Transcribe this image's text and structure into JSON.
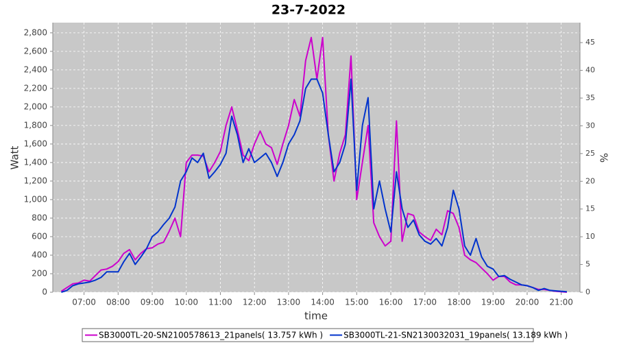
{
  "chart_data": {
    "type": "line",
    "title": "23-7-2022",
    "x_label": "time",
    "y_label": "Watt",
    "y2_label": "%",
    "x": [
      "06:20",
      "06:30",
      "06:40",
      "06:50",
      "07:00",
      "07:10",
      "07:20",
      "07:30",
      "07:40",
      "07:50",
      "08:00",
      "08:10",
      "08:20",
      "08:30",
      "08:40",
      "08:50",
      "09:00",
      "09:10",
      "09:20",
      "09:30",
      "09:40",
      "09:50",
      "10:00",
      "10:10",
      "10:20",
      "10:30",
      "10:40",
      "10:50",
      "11:00",
      "11:10",
      "11:20",
      "11:30",
      "11:40",
      "11:50",
      "12:00",
      "12:10",
      "12:20",
      "12:30",
      "12:40",
      "12:50",
      "13:00",
      "13:10",
      "13:20",
      "13:30",
      "13:40",
      "13:50",
      "14:00",
      "14:10",
      "14:20",
      "14:30",
      "14:40",
      "14:50",
      "15:00",
      "15:10",
      "15:20",
      "15:30",
      "15:40",
      "15:50",
      "16:00",
      "16:10",
      "16:20",
      "16:30",
      "16:40",
      "16:50",
      "17:00",
      "17:10",
      "17:20",
      "17:30",
      "17:40",
      "17:50",
      "18:00",
      "18:10",
      "18:20",
      "18:30",
      "18:40",
      "18:50",
      "19:00",
      "19:10",
      "19:20",
      "19:30",
      "19:40",
      "19:50",
      "20:00",
      "20:10",
      "20:20",
      "20:30",
      "20:40",
      "20:50",
      "21:00",
      "21:10"
    ],
    "series": [
      {
        "name": "SB3000TL-20-SN2100578613_21panels( 13.757 kWh )",
        "color": "#cc00cc",
        "values": [
          10,
          50,
          90,
          100,
          130,
          120,
          180,
          240,
          250,
          280,
          330,
          420,
          460,
          350,
          420,
          470,
          480,
          520,
          540,
          660,
          800,
          600,
          1400,
          1480,
          1480,
          1470,
          1300,
          1400,
          1520,
          1800,
          2000,
          1750,
          1480,
          1420,
          1600,
          1740,
          1600,
          1560,
          1380,
          1600,
          1800,
          2080,
          1900,
          2500,
          2750,
          2300,
          2750,
          1700,
          1200,
          1500,
          1700,
          2550,
          1000,
          1400,
          1800,
          750,
          600,
          500,
          550,
          1850,
          550,
          850,
          830,
          650,
          600,
          560,
          680,
          620,
          880,
          850,
          700,
          400,
          350,
          320,
          260,
          200,
          130,
          170,
          170,
          110,
          80,
          80,
          70,
          50,
          30,
          30,
          20,
          10,
          5,
          0
        ]
      },
      {
        "name": "SB3000TL-21-SN2130032031_19panels( 13.189 kWh )",
        "color": "#0033cc",
        "values": [
          0,
          20,
          70,
          90,
          100,
          110,
          130,
          160,
          220,
          220,
          220,
          330,
          420,
          300,
          380,
          470,
          600,
          650,
          730,
          800,
          920,
          1200,
          1300,
          1450,
          1400,
          1500,
          1230,
          1300,
          1380,
          1500,
          1900,
          1700,
          1400,
          1550,
          1400,
          1450,
          1500,
          1400,
          1250,
          1400,
          1600,
          1700,
          1850,
          2200,
          2300,
          2300,
          2150,
          1700,
          1300,
          1400,
          1600,
          2300,
          1100,
          1800,
          2100,
          900,
          1200,
          900,
          650,
          1300,
          900,
          700,
          780,
          620,
          550,
          520,
          580,
          500,
          700,
          1100,
          900,
          500,
          400,
          580,
          380,
          280,
          250,
          170,
          180,
          140,
          110,
          80,
          70,
          50,
          20,
          40,
          20,
          15,
          10,
          5
        ]
      }
    ],
    "xlim": [
      "06:05",
      "21:33"
    ],
    "xticks": [
      "07:00",
      "08:00",
      "09:00",
      "10:00",
      "11:00",
      "12:00",
      "13:00",
      "14:00",
      "15:00",
      "16:00",
      "17:00",
      "18:00",
      "19:00",
      "20:00",
      "21:00"
    ],
    "ylim": [
      0,
      2910
    ],
    "yticks": [
      0,
      200,
      400,
      600,
      800,
      {
        "value": 1000,
        "label": "1,000"
      },
      {
        "value": 1200,
        "label": "1,200"
      },
      {
        "value": 1400,
        "label": "1,400"
      },
      {
        "value": 1600,
        "label": "1,600"
      },
      {
        "value": 1800,
        "label": "1,800"
      },
      {
        "value": 2000,
        "label": "2,000"
      },
      {
        "value": 2200,
        "label": "2,200"
      },
      {
        "value": 2400,
        "label": "2,400"
      },
      {
        "value": 2600,
        "label": "2,600"
      },
      {
        "value": 2800,
        "label": "2,800"
      }
    ],
    "y2lim": [
      0,
      48.6
    ],
    "y2ticks": [
      0,
      5,
      10,
      15,
      20,
      25,
      30,
      35,
      40,
      45
    ],
    "grid": true
  }
}
